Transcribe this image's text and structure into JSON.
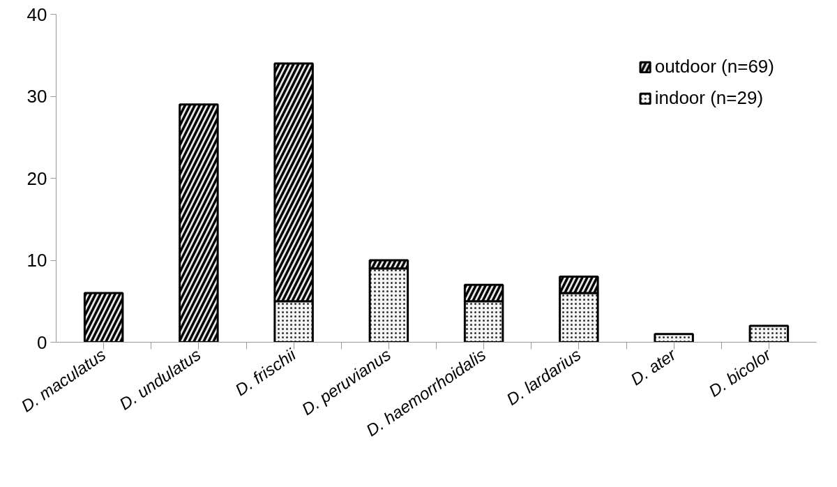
{
  "chart_data": {
    "type": "bar",
    "stacked": true,
    "categories": [
      "D. maculatus",
      "D. undulatus",
      "D. frischii",
      "D. peruvianus",
      "D. haemorrhoidalis",
      "D. lardarius",
      "D. ater",
      "D. bicolor"
    ],
    "series": [
      {
        "name": "indoor (n=29)",
        "color": "#f5f5f5",
        "values": [
          0,
          0,
          5,
          9,
          5,
          6,
          1,
          2
        ]
      },
      {
        "name": "outdoor (n=69)",
        "color": "#e8e8e8",
        "values": [
          6,
          29,
          29,
          1,
          2,
          2,
          0,
          0
        ]
      }
    ],
    "ylim": [
      0,
      40
    ],
    "yticks": [
      0,
      10,
      20,
      30,
      40
    ],
    "grid": false,
    "legend": "top right"
  }
}
